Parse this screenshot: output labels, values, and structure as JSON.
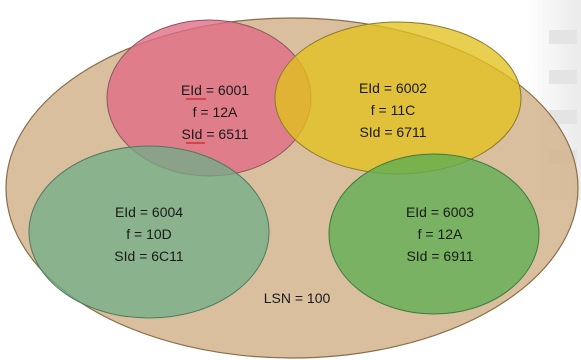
{
  "diagram": {
    "outer": {
      "label": "LSN = 100",
      "color": "#d2b48c"
    },
    "circles": [
      {
        "id": "top-left",
        "color": "#e06b85",
        "lines": [
          "EId = 6001",
          "f = 12A",
          "SId = 6511"
        ]
      },
      {
        "id": "top-right",
        "color": "#e2c21e",
        "lines": [
          "EId = 6002",
          "f = 11C",
          "SId = 6711"
        ]
      },
      {
        "id": "bottom-left",
        "color": "#6fae88",
        "lines": [
          "EId = 6004",
          "f = 10D",
          "SId = 6C11"
        ]
      },
      {
        "id": "bottom-right",
        "color": "#5cae52",
        "lines": [
          "EId = 6003",
          "f = 12A",
          "SId = 6911"
        ]
      }
    ]
  }
}
